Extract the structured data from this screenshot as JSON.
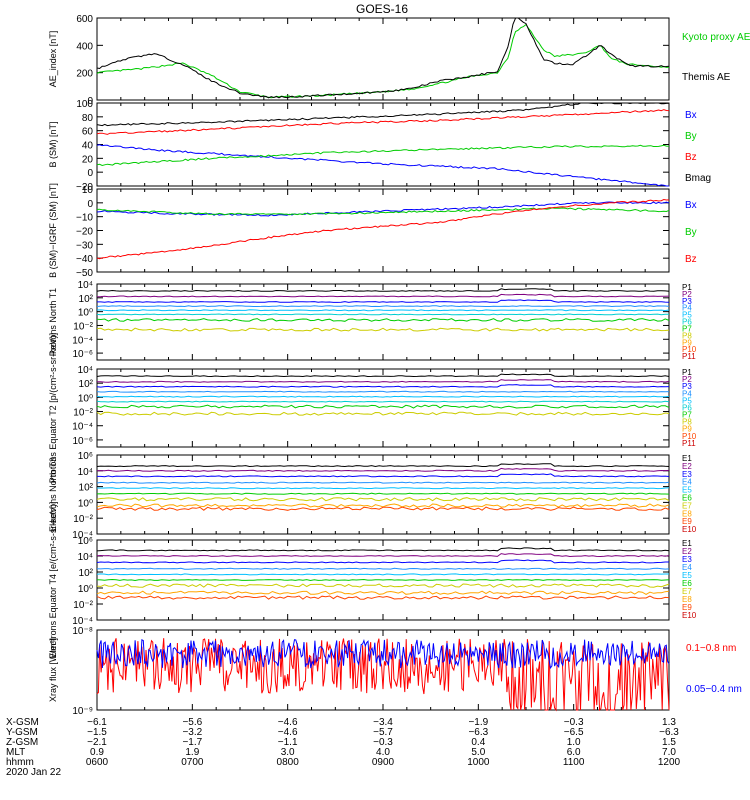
{
  "title": "GOES-16",
  "chart_data": [
    {
      "id": "ae",
      "type": "line",
      "ylabel": "AE_index [nT]",
      "ylim": [
        0,
        600
      ],
      "yticks": [
        0,
        200,
        400,
        600
      ],
      "ytick_labels": [
        "0",
        "200",
        "400",
        "600"
      ],
      "series": [
        {
          "name": "Kyoto proxy AE",
          "color": "#00cc00",
          "x": [
            0,
            0.08,
            0.15,
            0.2,
            0.25,
            0.3,
            0.38,
            0.42,
            0.5,
            0.55,
            0.62,
            0.65,
            0.7,
            0.72,
            0.73,
            0.75,
            0.78,
            0.8,
            0.85,
            0.88,
            0.9,
            0.93,
            1
          ],
          "values": [
            200,
            230,
            270,
            180,
            60,
            20,
            30,
            40,
            60,
            80,
            140,
            170,
            200,
            320,
            500,
            550,
            370,
            320,
            340,
            400,
            300,
            260,
            240
          ]
        },
        {
          "name": "Themis AE",
          "color": "#000000",
          "x": [
            0,
            0.05,
            0.1,
            0.15,
            0.2,
            0.25,
            0.3,
            0.35,
            0.42,
            0.5,
            0.55,
            0.6,
            0.65,
            0.7,
            0.72,
            0.73,
            0.75,
            0.78,
            0.8,
            0.83,
            0.85,
            0.88,
            0.9,
            0.93,
            1
          ],
          "values": [
            230,
            300,
            340,
            260,
            140,
            50,
            20,
            25,
            40,
            60,
            85,
            140,
            170,
            210,
            400,
            620,
            560,
            300,
            270,
            260,
            310,
            400,
            330,
            250,
            245
          ]
        }
      ]
    },
    {
      "id": "bsm",
      "type": "line",
      "ylabel": "B (SM) [nT]",
      "ylim": [
        -20,
        100
      ],
      "yticks": [
        -20,
        0,
        20,
        40,
        60,
        80,
        100
      ],
      "ytick_labels": [
        "−20",
        "0",
        "20",
        "40",
        "60",
        "80",
        "100"
      ],
      "series": [
        {
          "name": "Bx",
          "color": "#0000ff",
          "x": [
            0,
            0.1,
            0.3,
            0.5,
            0.7,
            0.85,
            1
          ],
          "values": [
            40,
            32,
            22,
            12,
            5,
            -8,
            -20
          ]
        },
        {
          "name": "By",
          "color": "#00cc00",
          "x": [
            0,
            0.2,
            0.4,
            0.6,
            0.8,
            1
          ],
          "values": [
            10,
            20,
            28,
            33,
            37,
            38
          ]
        },
        {
          "name": "Bz",
          "color": "#ff0000",
          "x": [
            0,
            0.2,
            0.4,
            0.6,
            0.8,
            1
          ],
          "values": [
            55,
            62,
            70,
            75,
            82,
            90
          ]
        },
        {
          "name": "Bmag",
          "color": "#000000",
          "x": [
            0,
            0.2,
            0.4,
            0.6,
            0.75,
            0.85,
            1
          ],
          "values": [
            68,
            72,
            78,
            84,
            90,
            100,
            100
          ]
        }
      ]
    },
    {
      "id": "bigrf",
      "type": "line",
      "ylabel": "B (SM)−IGRF (SM) [nT]",
      "ylim": [
        -50,
        10
      ],
      "yticks": [
        -50,
        -40,
        -30,
        -20,
        -10,
        0,
        10
      ],
      "ytick_labels": [
        "−50",
        "−40",
        "−30",
        "−20",
        "−10",
        "0",
        "10"
      ],
      "series": [
        {
          "name": "Bx",
          "color": "#0000ff",
          "x": [
            0,
            0.15,
            0.3,
            0.5,
            0.7,
            0.85,
            1
          ],
          "values": [
            -6,
            -8,
            -9,
            -6,
            -3,
            0,
            0
          ]
        },
        {
          "name": "By",
          "color": "#00cc00",
          "x": [
            0,
            0.2,
            0.4,
            0.6,
            0.8,
            1
          ],
          "values": [
            -5,
            -8,
            -8,
            -6,
            -4,
            -6
          ]
        },
        {
          "name": "Bz",
          "color": "#ff0000",
          "x": [
            0,
            0.1,
            0.2,
            0.3,
            0.4,
            0.5,
            0.6,
            0.7,
            0.8,
            0.9,
            1
          ],
          "values": [
            -40,
            -36,
            -31,
            -25,
            -20,
            -17,
            -14,
            -8,
            -3,
            0,
            2
          ]
        }
      ]
    },
    {
      "id": "prot_t1",
      "type": "line",
      "log": true,
      "ylabel": "Protons North T1",
      "ylim": [
        -7,
        4
      ],
      "yticks": [
        4,
        2,
        0,
        -2,
        -4,
        -6
      ],
      "ytick_labels": [
        "10⁴",
        "10²",
        "10⁰",
        "10⁻²",
        "10⁻⁴",
        "10⁻⁶"
      ],
      "legend": [
        {
          "name": "P1",
          "color": "#000000"
        },
        {
          "name": "P2",
          "color": "#800080"
        },
        {
          "name": "P3",
          "color": "#0000ff"
        },
        {
          "name": "P4",
          "color": "#1e90ff"
        },
        {
          "name": "P5",
          "color": "#00bfff"
        },
        {
          "name": "P6",
          "color": "#00ced1"
        },
        {
          "name": "P7",
          "color": "#00cc00"
        },
        {
          "name": "P8",
          "color": "#cccc00"
        },
        {
          "name": "P9",
          "color": "#ffa500"
        },
        {
          "name": "P10",
          "color": "#ff4500"
        },
        {
          "name": "P11",
          "color": "#cc0000"
        }
      ],
      "levels": [
        3.0,
        2.2,
        1.4,
        0.8,
        0.2,
        -0.4,
        -1.2,
        -2.6
      ]
    },
    {
      "id": "prot_t2",
      "type": "line",
      "log": true,
      "ylabel": "Protons Equator T2 [p/(cm²-s-sr-keV)]",
      "ylim": [
        -7,
        4
      ],
      "yticks": [
        4,
        2,
        0,
        -2,
        -4,
        -6
      ],
      "ytick_labels": [
        "10⁴",
        "10²",
        "10⁰",
        "10⁻²",
        "10⁻⁴",
        "10⁻⁶"
      ],
      "legend": [
        {
          "name": "P1",
          "color": "#000000"
        },
        {
          "name": "P2",
          "color": "#800080"
        },
        {
          "name": "P3",
          "color": "#0000ff"
        },
        {
          "name": "P4",
          "color": "#1e90ff"
        },
        {
          "name": "P5",
          "color": "#00bfff"
        },
        {
          "name": "P6",
          "color": "#00ced1"
        },
        {
          "name": "P7",
          "color": "#00cc00"
        },
        {
          "name": "P8",
          "color": "#cccc00"
        },
        {
          "name": "P9",
          "color": "#ffa500"
        },
        {
          "name": "P10",
          "color": "#ff4500"
        },
        {
          "name": "P11",
          "color": "#cc0000"
        }
      ],
      "levels": [
        3.0,
        2.2,
        1.5,
        0.8,
        0.1,
        -0.6,
        -1.3,
        -2.3
      ]
    },
    {
      "id": "elec_t3",
      "type": "line",
      "log": true,
      "ylabel": "Electrons North T3",
      "ylim": [
        -4,
        6
      ],
      "yticks": [
        6,
        4,
        2,
        0,
        -2,
        -4
      ],
      "ytick_labels": [
        "10⁶",
        "10⁴",
        "10²",
        "10⁰",
        "10⁻²",
        "10⁻⁴"
      ],
      "legend": [
        {
          "name": "E1",
          "color": "#000000"
        },
        {
          "name": "E2",
          "color": "#800080"
        },
        {
          "name": "E3",
          "color": "#0000ff"
        },
        {
          "name": "E4",
          "color": "#1e90ff"
        },
        {
          "name": "E5",
          "color": "#00bfff"
        },
        {
          "name": "E6",
          "color": "#00cc00"
        },
        {
          "name": "E7",
          "color": "#cccc00"
        },
        {
          "name": "E8",
          "color": "#ffa500"
        },
        {
          "name": "E9",
          "color": "#ff4500"
        },
        {
          "name": "E10",
          "color": "#cc0000"
        }
      ],
      "levels": [
        4.6,
        4.0,
        3.3,
        2.5,
        1.8,
        1.1,
        0.4,
        -0.4,
        -0.8
      ]
    },
    {
      "id": "elec_t4",
      "type": "line",
      "log": true,
      "ylabel": "Electrons Equator T4 [e/(cm²-s-sr-keV)]",
      "ylim": [
        -4,
        6
      ],
      "yticks": [
        6,
        4,
        2,
        0,
        -2,
        -4
      ],
      "ytick_labels": [
        "10⁶",
        "10⁴",
        "10²",
        "10⁰",
        "10⁻²",
        "10⁻⁴"
      ],
      "legend": [
        {
          "name": "E1",
          "color": "#000000"
        },
        {
          "name": "E2",
          "color": "#800080"
        },
        {
          "name": "E3",
          "color": "#0000ff"
        },
        {
          "name": "E4",
          "color": "#1e90ff"
        },
        {
          "name": "E5",
          "color": "#00bfff"
        },
        {
          "name": "E6",
          "color": "#00cc00"
        },
        {
          "name": "E7",
          "color": "#cccc00"
        },
        {
          "name": "E8",
          "color": "#ffa500"
        },
        {
          "name": "E9",
          "color": "#ff4500"
        },
        {
          "name": "E10",
          "color": "#cc0000"
        }
      ],
      "levels": [
        4.7,
        4.0,
        3.2,
        2.4,
        1.7,
        1.0,
        0.3,
        -0.6,
        -1.2
      ]
    },
    {
      "id": "xray",
      "type": "line",
      "log": true,
      "ylabel": "Xray flux [W/m²]",
      "ylim": [
        -9,
        -8
      ],
      "yticks": [
        -8,
        -9
      ],
      "ytick_labels": [
        "10⁻⁸",
        "10⁻⁹"
      ],
      "series": [
        {
          "name": "0.1−0.8 nm",
          "color": "#ff0000"
        },
        {
          "name": "0.05−0.4 nm",
          "color": "#0000ff"
        }
      ]
    }
  ],
  "xaxis": {
    "rows": [
      {
        "label": "X-GSM",
        "values": [
          "−6.1",
          "−5.6",
          "−4.6",
          "−3.4",
          "−1.9",
          "−0.3",
          "1.3"
        ]
      },
      {
        "label": "Y-GSM",
        "values": [
          "−1.5",
          "−3.2",
          "−4.6",
          "−5.7",
          "−6.3",
          "−6.5",
          "−6.3"
        ]
      },
      {
        "label": "Z-GSM",
        "values": [
          "−2.1",
          "−1.7",
          "−1.1",
          "−0.3",
          "0.4",
          "1.0",
          "1.5"
        ]
      },
      {
        "label": "MLT",
        "values": [
          "0.9",
          "1.9",
          "3.0",
          "4.0",
          "5.0",
          "6.0",
          "7.0"
        ]
      },
      {
        "label": "hhmm",
        "values": [
          "0600",
          "0700",
          "0800",
          "0900",
          "1000",
          "1100",
          "1200"
        ]
      }
    ],
    "date": "2020 Jan 22"
  }
}
